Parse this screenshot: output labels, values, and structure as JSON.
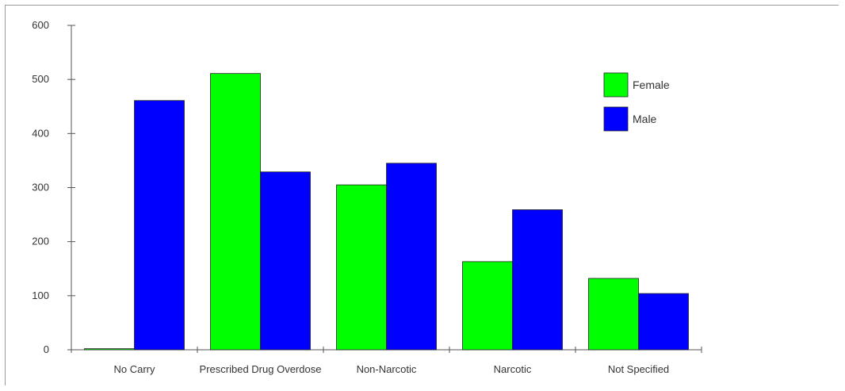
{
  "chart_data": {
    "type": "bar",
    "title": "",
    "xlabel": "",
    "ylabel": "",
    "categories": [
      "No Carry",
      "Prescribed Drug Overdose",
      "Non-Narcotic",
      "Narcotic",
      "Not Specified"
    ],
    "series": [
      {
        "name": "Female",
        "color": "#00ff00",
        "values": [
          2,
          511,
          305,
          163,
          132
        ]
      },
      {
        "name": "Male",
        "color": "#0000ff",
        "values": [
          461,
          329,
          345,
          259,
          104
        ]
      }
    ],
    "ylim": [
      0,
      600
    ],
    "yticks": [
      "0",
      "100",
      "200",
      "300",
      "400",
      "500",
      "600"
    ],
    "grid": false,
    "legend_position": "top-right"
  }
}
